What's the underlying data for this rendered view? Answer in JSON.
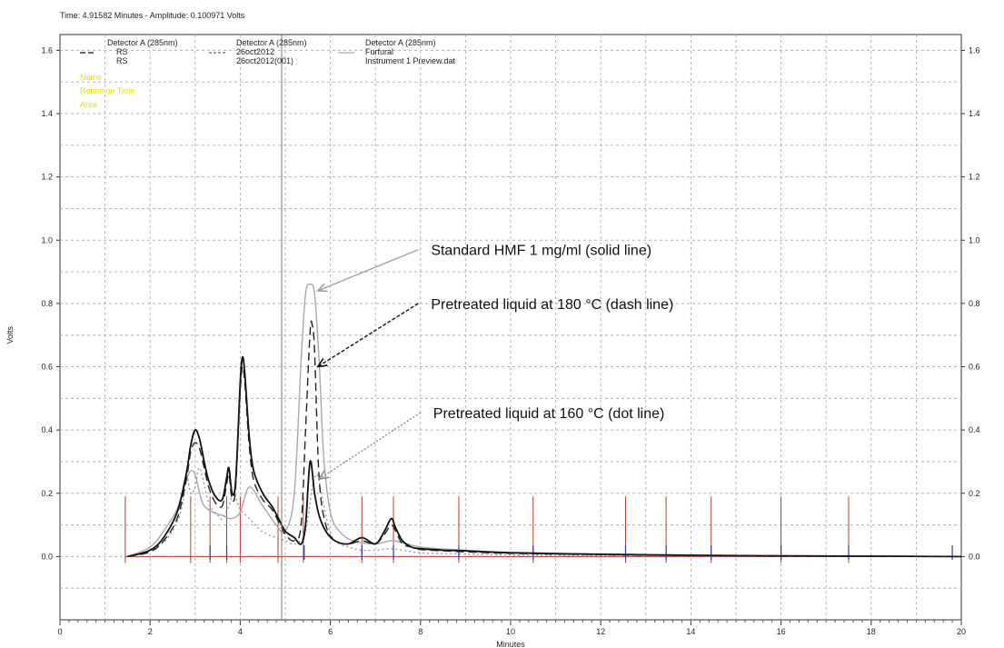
{
  "header": {
    "readout": "Time: 4.91582 Minutes - Amplitude: 0.100971 Volts"
  },
  "legend": {
    "groups": [
      {
        "detector": "Detector A (285nm)",
        "lines": [
          "RS",
          "RS"
        ],
        "style": "dashdark"
      },
      {
        "detector": "Detector A (285nm)",
        "lines": [
          "26oct2012",
          "26oct2012(001)"
        ],
        "style": "dashgray"
      },
      {
        "detector": "Detector A (285nm)",
        "lines": [
          "Furfural",
          "Instrument 1 Preview.dat"
        ],
        "style": "solidlight"
      }
    ],
    "peak_labels": [
      "Name",
      "Retention Time",
      "Area"
    ]
  },
  "annotations": [
    {
      "text": "Standard HMF 1 mg/ml (solid line)",
      "arrow_to": [
        5.72,
        0.84
      ],
      "arrow_from": [
        7.95,
        0.97
      ],
      "style": "solid",
      "color": "#a0a0a0"
    },
    {
      "text": "Pretreated liquid at 180 °C (dash line)",
      "arrow_to": [
        5.72,
        0.6
      ],
      "arrow_from": [
        7.95,
        0.8
      ],
      "style": "dashed",
      "color": "#111111"
    },
    {
      "text": "Pretreated liquid at 160 °C (dot line)",
      "arrow_to": [
        5.75,
        0.245
      ],
      "arrow_from": [
        8.0,
        0.455
      ],
      "style": "dotted",
      "color": "#888888"
    }
  ],
  "chart_data": {
    "type": "line",
    "xlabel": "Minutes",
    "ylabel": "Volts",
    "xlim": [
      0,
      20
    ],
    "ylim": [
      -0.2,
      1.65
    ],
    "xticks": [
      "0",
      "2",
      "4",
      "6",
      "8",
      "10",
      "12",
      "14",
      "16",
      "18",
      "20"
    ],
    "yticks": [
      "0.0",
      "0.2",
      "0.4",
      "0.6",
      "0.8",
      "1.0",
      "1.2",
      "1.4",
      "1.6"
    ],
    "cursor_x": 4.92,
    "grid": true,
    "series": [
      {
        "name": "RS",
        "color": "#111111",
        "dash": "none",
        "x": [
          1.5,
          2.0,
          2.3,
          2.6,
          2.8,
          2.9,
          3.0,
          3.1,
          3.2,
          3.3,
          3.45,
          3.6,
          3.7,
          3.75,
          3.82,
          3.9,
          4.0,
          4.05,
          4.1,
          4.2,
          4.3,
          4.5,
          4.7,
          4.85,
          5.0,
          5.2,
          5.35,
          5.45,
          5.55,
          5.65,
          5.75,
          5.9,
          6.1,
          6.4,
          6.7,
          7.0,
          7.2,
          7.35,
          7.45,
          7.6,
          7.8,
          8.0,
          8.5,
          9,
          10,
          12,
          14,
          16,
          18,
          20
        ],
        "y": [
          0.0,
          0.02,
          0.06,
          0.14,
          0.26,
          0.35,
          0.4,
          0.37,
          0.3,
          0.24,
          0.19,
          0.18,
          0.25,
          0.28,
          0.2,
          0.24,
          0.55,
          0.63,
          0.58,
          0.38,
          0.27,
          0.2,
          0.16,
          0.12,
          0.08,
          0.06,
          0.04,
          0.1,
          0.3,
          0.2,
          0.13,
          0.08,
          0.05,
          0.04,
          0.06,
          0.04,
          0.08,
          0.12,
          0.09,
          0.05,
          0.03,
          0.025,
          0.02,
          0.018,
          0.012,
          0.007,
          0.004,
          0.002,
          0.001,
          0.0
        ]
      },
      {
        "name": "26oct2012",
        "color": "#222222",
        "dash": "9,5",
        "x": [
          1.5,
          2.0,
          2.3,
          2.6,
          2.8,
          2.9,
          3.0,
          3.1,
          3.2,
          3.3,
          3.45,
          3.6,
          3.7,
          3.75,
          3.82,
          3.9,
          4.0,
          4.05,
          4.1,
          4.2,
          4.3,
          4.5,
          4.7,
          4.85,
          5.0,
          5.2,
          5.35,
          5.45,
          5.55,
          5.6,
          5.65,
          5.75,
          5.9,
          6.1,
          6.4,
          6.7,
          7.0,
          7.2,
          7.35,
          7.45,
          7.6,
          7.8,
          8.0,
          8.5,
          9,
          10,
          12,
          14,
          16,
          18,
          20
        ],
        "y": [
          0.0,
          0.015,
          0.05,
          0.12,
          0.24,
          0.33,
          0.36,
          0.34,
          0.28,
          0.22,
          0.17,
          0.16,
          0.23,
          0.26,
          0.18,
          0.22,
          0.52,
          0.6,
          0.55,
          0.35,
          0.24,
          0.18,
          0.15,
          0.11,
          0.07,
          0.05,
          0.1,
          0.4,
          0.71,
          0.73,
          0.65,
          0.25,
          0.1,
          0.05,
          0.04,
          0.05,
          0.04,
          0.07,
          0.1,
          0.08,
          0.04,
          0.03,
          0.022,
          0.018,
          0.015,
          0.01,
          0.006,
          0.003,
          0.002,
          0.001,
          0.0
        ]
      },
      {
        "name": "Furfural",
        "color": "#a8a8a8",
        "dash": "none",
        "x": [
          1.5,
          2.0,
          2.3,
          2.6,
          2.8,
          2.9,
          3.0,
          3.1,
          3.2,
          3.4,
          3.6,
          3.8,
          4.0,
          4.2,
          4.5,
          4.8,
          5.0,
          5.2,
          5.35,
          5.45,
          5.55,
          5.65,
          5.75,
          5.85,
          6.0,
          6.2,
          6.5,
          7.0,
          7.4,
          8.0,
          9,
          10,
          12,
          14,
          16,
          18,
          20
        ],
        "y": [
          0.0,
          0.03,
          0.08,
          0.15,
          0.24,
          0.27,
          0.26,
          0.2,
          0.16,
          0.14,
          0.13,
          0.12,
          0.14,
          0.22,
          0.16,
          0.1,
          0.08,
          0.2,
          0.62,
          0.83,
          0.86,
          0.83,
          0.62,
          0.32,
          0.14,
          0.08,
          0.05,
          0.04,
          0.05,
          0.03,
          0.02,
          0.012,
          0.008,
          0.005,
          0.003,
          0.002,
          0.0
        ]
      },
      {
        "name": "Instrument 1 Preview.dat",
        "color": "#9a9a9a",
        "dash": "2,3",
        "x": [
          1.5,
          2.0,
          2.4,
          2.7,
          2.8,
          2.9,
          3.0,
          3.1,
          3.3,
          3.5,
          3.6,
          3.75,
          3.85,
          4.0,
          4.2,
          4.4,
          4.6,
          4.8,
          5.0,
          5.2,
          5.4,
          5.5,
          5.6,
          5.7,
          5.8,
          5.95,
          6.1,
          6.4,
          6.7,
          7.0,
          7.3,
          7.6,
          8.0,
          9,
          10,
          12,
          14,
          16,
          18,
          20
        ],
        "y": [
          0.0,
          0.02,
          0.06,
          0.15,
          0.26,
          0.2,
          0.22,
          0.28,
          0.17,
          0.13,
          0.12,
          0.16,
          0.2,
          0.15,
          0.12,
          0.09,
          0.07,
          0.06,
          0.05,
          0.04,
          0.06,
          0.12,
          0.22,
          0.26,
          0.2,
          0.1,
          0.05,
          0.03,
          0.02,
          0.02,
          0.025,
          0.02,
          0.012,
          0.008,
          0.005,
          0.003,
          0.002,
          0.001,
          0.0,
          0.0
        ]
      }
    ],
    "peak_markers_red": [
      1.45,
      2.9,
      3.33,
      3.7,
      4.0,
      4.84,
      5.4,
      6.7,
      7.4,
      8.85,
      10.5,
      12.55,
      13.45,
      14.45,
      16.0,
      17.5
    ],
    "peak_markers_blue": [
      3.33,
      3.7,
      5.42,
      6.7,
      7.4,
      8.85,
      10.5,
      12.55,
      13.45,
      14.45,
      16.0,
      17.5,
      19.8
    ]
  }
}
